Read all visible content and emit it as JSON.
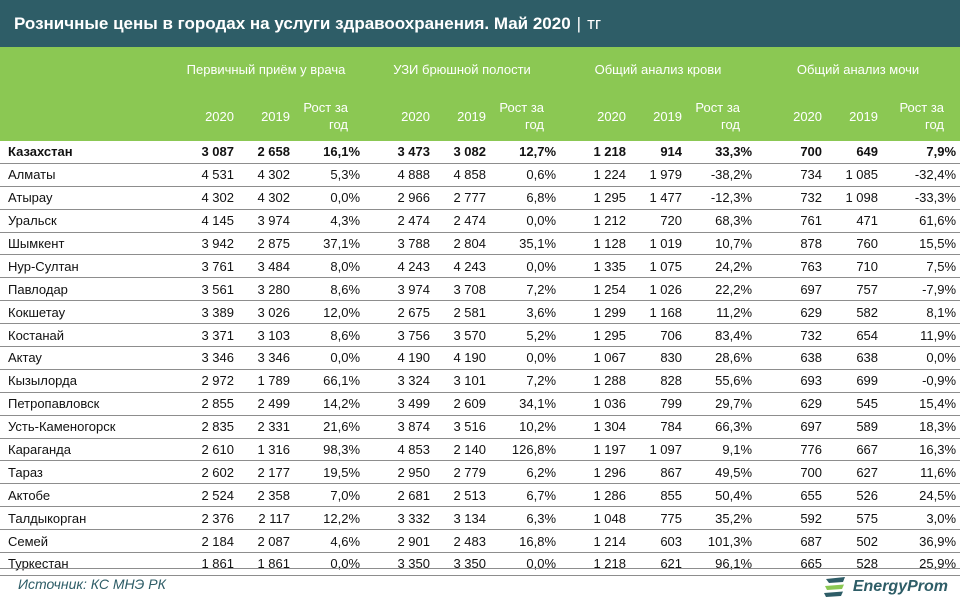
{
  "header": {
    "title": "Розничные цены в городах на услуги здравоохранения. Май 2020",
    "separator": "|",
    "unit": "тг"
  },
  "groups": [
    "Первичный приём у врача",
    "УЗИ брюшной полости",
    "Общий анализ крови",
    "Общий анализ мочи"
  ],
  "subheaders": [
    "2020",
    "2019",
    "Рост за год"
  ],
  "rows": [
    {
      "city": "Казахстан",
      "v": [
        "3 087",
        "2 658",
        "16,1%",
        "3 473",
        "3 082",
        "12,7%",
        "1 218",
        "914",
        "33,3%",
        "700",
        "649",
        "7,9%"
      ]
    },
    {
      "city": "Алматы",
      "v": [
        "4 531",
        "4 302",
        "5,3%",
        "4 888",
        "4 858",
        "0,6%",
        "1 224",
        "1 979",
        "-38,2%",
        "734",
        "1 085",
        "-32,4%"
      ]
    },
    {
      "city": "Атырау",
      "v": [
        "4 302",
        "4 302",
        "0,0%",
        "2 966",
        "2 777",
        "6,8%",
        "1 295",
        "1 477",
        "-12,3%",
        "732",
        "1 098",
        "-33,3%"
      ]
    },
    {
      "city": "Уральск",
      "v": [
        "4 145",
        "3 974",
        "4,3%",
        "2 474",
        "2 474",
        "0,0%",
        "1 212",
        "720",
        "68,3%",
        "761",
        "471",
        "61,6%"
      ]
    },
    {
      "city": "Шымкент",
      "v": [
        "3 942",
        "2 875",
        "37,1%",
        "3 788",
        "2 804",
        "35,1%",
        "1 128",
        "1 019",
        "10,7%",
        "878",
        "760",
        "15,5%"
      ]
    },
    {
      "city": "Нур-Султан",
      "v": [
        "3 761",
        "3 484",
        "8,0%",
        "4 243",
        "4 243",
        "0,0%",
        "1 335",
        "1 075",
        "24,2%",
        "763",
        "710",
        "7,5%"
      ]
    },
    {
      "city": "Павлодар",
      "v": [
        "3 561",
        "3 280",
        "8,6%",
        "3 974",
        "3 708",
        "7,2%",
        "1 254",
        "1 026",
        "22,2%",
        "697",
        "757",
        "-7,9%"
      ]
    },
    {
      "city": "Кокшетау",
      "v": [
        "3 389",
        "3 026",
        "12,0%",
        "2 675",
        "2 581",
        "3,6%",
        "1 299",
        "1 168",
        "11,2%",
        "629",
        "582",
        "8,1%"
      ]
    },
    {
      "city": "Костанай",
      "v": [
        "3 371",
        "3 103",
        "8,6%",
        "3 756",
        "3 570",
        "5,2%",
        "1 295",
        "706",
        "83,4%",
        "732",
        "654",
        "11,9%"
      ]
    },
    {
      "city": "Актау",
      "v": [
        "3 346",
        "3 346",
        "0,0%",
        "4 190",
        "4 190",
        "0,0%",
        "1 067",
        "830",
        "28,6%",
        "638",
        "638",
        "0,0%"
      ]
    },
    {
      "city": "Кызылорда",
      "v": [
        "2 972",
        "1 789",
        "66,1%",
        "3 324",
        "3 101",
        "7,2%",
        "1 288",
        "828",
        "55,6%",
        "693",
        "699",
        "-0,9%"
      ]
    },
    {
      "city": "Петропавловск",
      "v": [
        "2 855",
        "2 499",
        "14,2%",
        "3 499",
        "2 609",
        "34,1%",
        "1 036",
        "799",
        "29,7%",
        "629",
        "545",
        "15,4%"
      ]
    },
    {
      "city": "Усть-Каменогорск",
      "v": [
        "2 835",
        "2 331",
        "21,6%",
        "3 874",
        "3 516",
        "10,2%",
        "1 304",
        "784",
        "66,3%",
        "697",
        "589",
        "18,3%"
      ]
    },
    {
      "city": "Караганда",
      "v": [
        "2 610",
        "1 316",
        "98,3%",
        "4 853",
        "2 140",
        "126,8%",
        "1 197",
        "1 097",
        "9,1%",
        "776",
        "667",
        "16,3%"
      ]
    },
    {
      "city": "Тараз",
      "v": [
        "2 602",
        "2 177",
        "19,5%",
        "2 950",
        "2 779",
        "6,2%",
        "1 296",
        "867",
        "49,5%",
        "700",
        "627",
        "11,6%"
      ]
    },
    {
      "city": "Актобе",
      "v": [
        "2 524",
        "2 358",
        "7,0%",
        "2 681",
        "2 513",
        "6,7%",
        "1 286",
        "855",
        "50,4%",
        "655",
        "526",
        "24,5%"
      ]
    },
    {
      "city": "Талдыкорган",
      "v": [
        "2 376",
        "2 117",
        "12,2%",
        "3 332",
        "3 134",
        "6,3%",
        "1 048",
        "775",
        "35,2%",
        "592",
        "575",
        "3,0%"
      ]
    },
    {
      "city": "Семей",
      "v": [
        "2 184",
        "2 087",
        "4,6%",
        "2 901",
        "2 483",
        "16,8%",
        "1 214",
        "603",
        "101,3%",
        "687",
        "502",
        "36,9%"
      ]
    },
    {
      "city": "Туркестан",
      "v": [
        "1 861",
        "1 861",
        "0,0%",
        "3 350",
        "3 350",
        "0,0%",
        "1 218",
        "621",
        "96,1%",
        "665",
        "528",
        "25,9%"
      ]
    }
  ],
  "footer": {
    "source": "Источник: КС МНЭ РК",
    "logo_text": "EnergyProm"
  },
  "colors": {
    "title_bg": "#2e5d67",
    "header_bg": "#8bc853",
    "source_text": "#2e5d67"
  }
}
